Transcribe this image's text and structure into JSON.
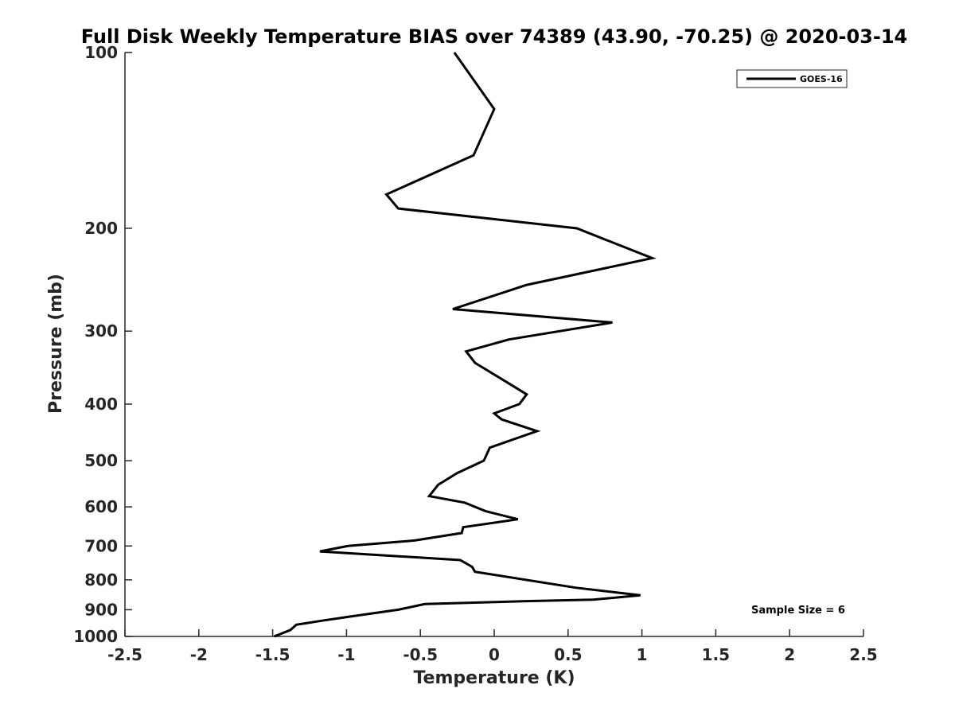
{
  "chart_data": {
    "type": "line",
    "title": "Full Disk Weekly Temperature BIAS over 74389 (43.90, -70.25) @ 2020-03-14",
    "xlabel": "Temperature (K)",
    "ylabel": "Pressure (mb)",
    "xlim": [
      -2.5,
      2.5
    ],
    "ylim": [
      1000,
      100
    ],
    "y_scale": "log",
    "y_reversed": true,
    "grid": false,
    "x_ticks": [
      "-2.5",
      "-2",
      "-1.5",
      "-1",
      "-0.5",
      "0",
      "0.5",
      "1",
      "1.5",
      "2",
      "2.5"
    ],
    "y_ticks": [
      "100",
      "200",
      "300",
      "400",
      "500",
      "600",
      "700",
      "800",
      "900",
      "1000"
    ],
    "legend": {
      "position": "top-right"
    },
    "annotation": "Sample Size = 6",
    "series": [
      {
        "name": "GOES-16",
        "color": "#000000",
        "x": [
          -0.27,
          0.0,
          -0.14,
          -0.73,
          -0.65,
          0.56,
          1.07,
          0.22,
          -0.28,
          0.8,
          0.1,
          -0.19,
          -0.13,
          0.07,
          0.22,
          0.17,
          0.0,
          0.05,
          0.29,
          -0.03,
          -0.07,
          -0.25,
          -0.38,
          -0.44,
          -0.2,
          -0.06,
          0.16,
          -0.21,
          -0.22,
          -0.54,
          -0.99,
          -1.18,
          -0.23,
          -0.15,
          -0.13,
          0.55,
          0.99,
          0.67,
          0.22,
          -0.47,
          -0.65,
          -0.98,
          -1.17,
          -1.34,
          -1.38,
          -1.49
        ],
        "y": [
          100,
          125,
          150,
          175,
          185,
          200,
          225,
          250,
          275,
          290,
          310,
          325,
          340,
          365,
          385,
          400,
          415,
          425,
          445,
          475,
          500,
          525,
          550,
          575,
          590,
          610,
          630,
          650,
          665,
          685,
          700,
          715,
          740,
          760,
          775,
          825,
          850,
          865,
          870,
          880,
          900,
          925,
          940,
          955,
          975,
          1000
        ]
      }
    ]
  }
}
